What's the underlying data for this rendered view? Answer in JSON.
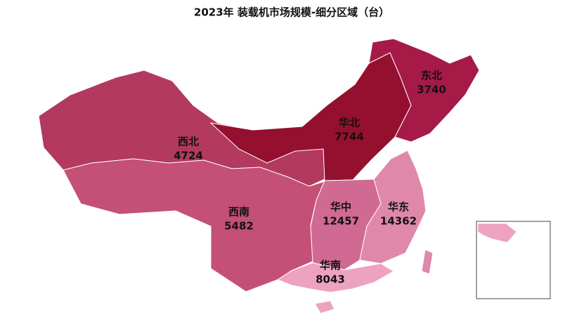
{
  "chart_data": {
    "type": "map",
    "title": "2023年 装载机市场规模-细分区域（台）",
    "regions": [
      {
        "name": "西北",
        "value": 4724,
        "color": "#b3395f"
      },
      {
        "name": "西南",
        "value": 5482,
        "color": "#c44f77"
      },
      {
        "name": "华北",
        "value": 7744,
        "color": "#95102f"
      },
      {
        "name": "东北",
        "value": 3740,
        "color": "#a61a48"
      },
      {
        "name": "华中",
        "value": 12457,
        "color": "#d16a92"
      },
      {
        "name": "华东",
        "value": 14362,
        "color": "#df88a9"
      },
      {
        "name": "华南",
        "value": 8043,
        "color": "#eda3bf"
      }
    ]
  }
}
